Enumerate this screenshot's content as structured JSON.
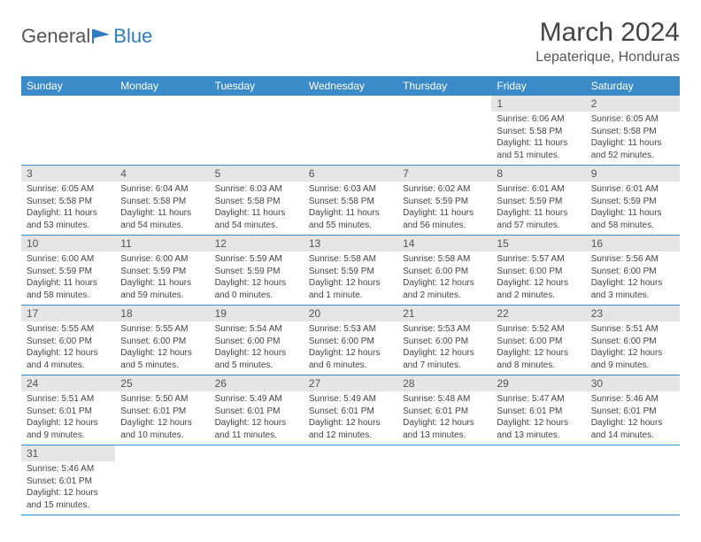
{
  "brand": {
    "part1": "General",
    "part2": "Blue"
  },
  "title": "March 2024",
  "location": "Lepaterique, Honduras",
  "colors": {
    "header_bg": "#3b8bc9",
    "header_fg": "#ffffff",
    "daynum_bg": "#e5e5e5",
    "border": "#3b8bc9",
    "brand_blue": "#2f7bbf",
    "text": "#444444"
  },
  "dow": [
    "Sunday",
    "Monday",
    "Tuesday",
    "Wednesday",
    "Thursday",
    "Friday",
    "Saturday"
  ],
  "weeks": [
    [
      null,
      null,
      null,
      null,
      null,
      {
        "n": "1",
        "sr": "6:06 AM",
        "ss": "5:58 PM",
        "dl": "11 hours and 51 minutes."
      },
      {
        "n": "2",
        "sr": "6:05 AM",
        "ss": "5:58 PM",
        "dl": "11 hours and 52 minutes."
      }
    ],
    [
      {
        "n": "3",
        "sr": "6:05 AM",
        "ss": "5:58 PM",
        "dl": "11 hours and 53 minutes."
      },
      {
        "n": "4",
        "sr": "6:04 AM",
        "ss": "5:58 PM",
        "dl": "11 hours and 54 minutes."
      },
      {
        "n": "5",
        "sr": "6:03 AM",
        "ss": "5:58 PM",
        "dl": "11 hours and 54 minutes."
      },
      {
        "n": "6",
        "sr": "6:03 AM",
        "ss": "5:58 PM",
        "dl": "11 hours and 55 minutes."
      },
      {
        "n": "7",
        "sr": "6:02 AM",
        "ss": "5:59 PM",
        "dl": "11 hours and 56 minutes."
      },
      {
        "n": "8",
        "sr": "6:01 AM",
        "ss": "5:59 PM",
        "dl": "11 hours and 57 minutes."
      },
      {
        "n": "9",
        "sr": "6:01 AM",
        "ss": "5:59 PM",
        "dl": "11 hours and 58 minutes."
      }
    ],
    [
      {
        "n": "10",
        "sr": "6:00 AM",
        "ss": "5:59 PM",
        "dl": "11 hours and 58 minutes."
      },
      {
        "n": "11",
        "sr": "6:00 AM",
        "ss": "5:59 PM",
        "dl": "11 hours and 59 minutes."
      },
      {
        "n": "12",
        "sr": "5:59 AM",
        "ss": "5:59 PM",
        "dl": "12 hours and 0 minutes."
      },
      {
        "n": "13",
        "sr": "5:58 AM",
        "ss": "5:59 PM",
        "dl": "12 hours and 1 minute."
      },
      {
        "n": "14",
        "sr": "5:58 AM",
        "ss": "6:00 PM",
        "dl": "12 hours and 2 minutes."
      },
      {
        "n": "15",
        "sr": "5:57 AM",
        "ss": "6:00 PM",
        "dl": "12 hours and 2 minutes."
      },
      {
        "n": "16",
        "sr": "5:56 AM",
        "ss": "6:00 PM",
        "dl": "12 hours and 3 minutes."
      }
    ],
    [
      {
        "n": "17",
        "sr": "5:55 AM",
        "ss": "6:00 PM",
        "dl": "12 hours and 4 minutes."
      },
      {
        "n": "18",
        "sr": "5:55 AM",
        "ss": "6:00 PM",
        "dl": "12 hours and 5 minutes."
      },
      {
        "n": "19",
        "sr": "5:54 AM",
        "ss": "6:00 PM",
        "dl": "12 hours and 5 minutes."
      },
      {
        "n": "20",
        "sr": "5:53 AM",
        "ss": "6:00 PM",
        "dl": "12 hours and 6 minutes."
      },
      {
        "n": "21",
        "sr": "5:53 AM",
        "ss": "6:00 PM",
        "dl": "12 hours and 7 minutes."
      },
      {
        "n": "22",
        "sr": "5:52 AM",
        "ss": "6:00 PM",
        "dl": "12 hours and 8 minutes."
      },
      {
        "n": "23",
        "sr": "5:51 AM",
        "ss": "6:00 PM",
        "dl": "12 hours and 9 minutes."
      }
    ],
    [
      {
        "n": "24",
        "sr": "5:51 AM",
        "ss": "6:01 PM",
        "dl": "12 hours and 9 minutes."
      },
      {
        "n": "25",
        "sr": "5:50 AM",
        "ss": "6:01 PM",
        "dl": "12 hours and 10 minutes."
      },
      {
        "n": "26",
        "sr": "5:49 AM",
        "ss": "6:01 PM",
        "dl": "12 hours and 11 minutes."
      },
      {
        "n": "27",
        "sr": "5:49 AM",
        "ss": "6:01 PM",
        "dl": "12 hours and 12 minutes."
      },
      {
        "n": "28",
        "sr": "5:48 AM",
        "ss": "6:01 PM",
        "dl": "12 hours and 13 minutes."
      },
      {
        "n": "29",
        "sr": "5:47 AM",
        "ss": "6:01 PM",
        "dl": "12 hours and 13 minutes."
      },
      {
        "n": "30",
        "sr": "5:46 AM",
        "ss": "6:01 PM",
        "dl": "12 hours and 14 minutes."
      }
    ],
    [
      {
        "n": "31",
        "sr": "5:46 AM",
        "ss": "6:01 PM",
        "dl": "12 hours and 15 minutes."
      },
      null,
      null,
      null,
      null,
      null,
      null
    ]
  ],
  "labels": {
    "sunrise": "Sunrise:",
    "sunset": "Sunset:",
    "daylight": "Daylight:"
  }
}
